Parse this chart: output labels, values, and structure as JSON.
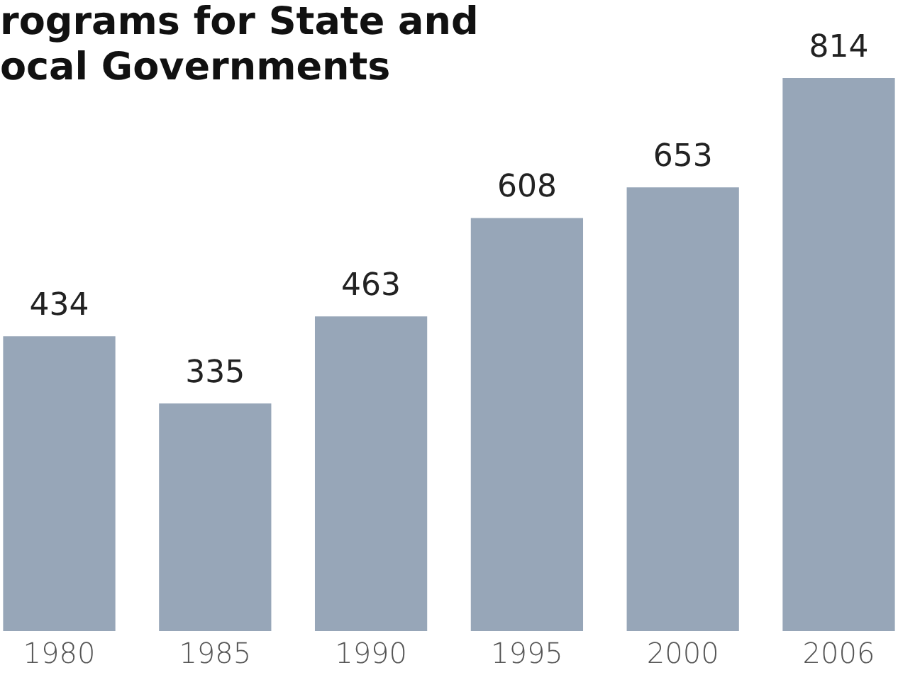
{
  "chart_data": {
    "type": "bar",
    "title": "rograms for State and\nocal Governments",
    "categories": [
      "1980",
      "1985",
      "1990",
      "1995",
      "2000",
      "2006"
    ],
    "values": [
      434,
      335,
      463,
      608,
      653,
      814
    ],
    "color": "#97a6b8",
    "data_labels": true
  }
}
